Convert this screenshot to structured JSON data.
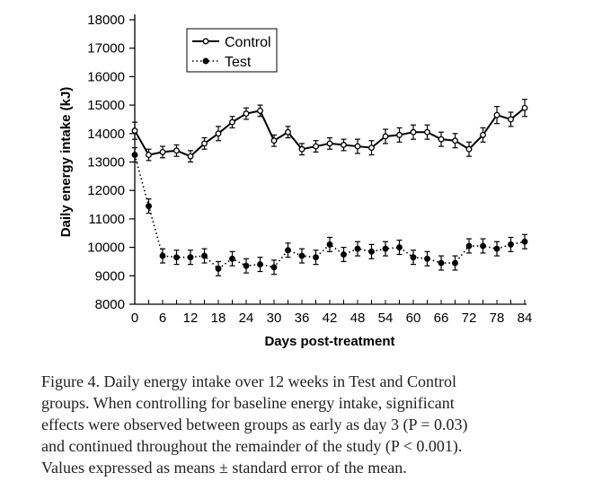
{
  "chart_data": {
    "type": "line",
    "xlabel": "Days post-treatment",
    "ylabel": "Daily energy intake (kJ)",
    "xlim": [
      0,
      84
    ],
    "ylim": [
      8000,
      18000
    ],
    "xticks": [
      0,
      6,
      12,
      18,
      24,
      30,
      36,
      42,
      48,
      54,
      60,
      66,
      72,
      78,
      84
    ],
    "yticks": [
      8000,
      9000,
      10000,
      11000,
      12000,
      13000,
      14000,
      15000,
      16000,
      17000,
      18000
    ],
    "legend_position": "top-left",
    "x": [
      0,
      3,
      6,
      9,
      12,
      15,
      18,
      21,
      24,
      27,
      30,
      33,
      36,
      39,
      42,
      45,
      48,
      51,
      54,
      57,
      60,
      63,
      66,
      69,
      72,
      75,
      78,
      81,
      84
    ],
    "series": [
      {
        "name": "Control",
        "style": "solid-open-circle",
        "values": [
          14100,
          13250,
          13350,
          13400,
          13200,
          13650,
          14000,
          14400,
          14700,
          14800,
          13750,
          14050,
          13450,
          13550,
          13650,
          13600,
          13550,
          13500,
          13900,
          13950,
          14050,
          14050,
          13800,
          13750,
          13450,
          13950,
          14650,
          14500,
          14900
        ],
        "errors": [
          300,
          200,
          200,
          200,
          200,
          200,
          250,
          200,
          200,
          200,
          200,
          200,
          200,
          200,
          200,
          200,
          250,
          250,
          250,
          250,
          250,
          250,
          250,
          250,
          250,
          250,
          300,
          250,
          300
        ]
      },
      {
        "name": "Test",
        "style": "dotted-filled-circle",
        "values": [
          13250,
          11450,
          9700,
          9650,
          9650,
          9700,
          9250,
          9600,
          9350,
          9400,
          9300,
          9900,
          9700,
          9650,
          10100,
          9750,
          9950,
          9850,
          9950,
          10000,
          9650,
          9600,
          9450,
          9450,
          10050,
          10050,
          9950,
          10100,
          10200
        ]
      }
    ]
  },
  "caption": {
    "lines": [
      "Figure 4.  Daily energy intake over 12 weeks in Test and Control",
      "groups. When controlling for baseline energy intake, significant",
      "effects were observed between groups as early as day 3 (P = 0.03)",
      "and continued throughout the remainder of the study (P < 0.001).",
      "Values expressed as means ± standard error of the mean."
    ]
  }
}
